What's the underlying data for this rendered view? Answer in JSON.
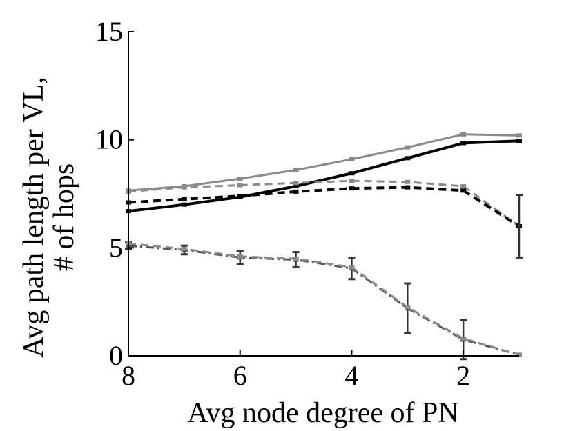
{
  "chart_data": {
    "type": "line",
    "title": "",
    "xlabel": "Avg node degree of PN",
    "ylabel_lines": [
      "Avg path length per VL,",
      "# of hops"
    ],
    "xlim": [
      8,
      1
    ],
    "ylim": [
      0,
      15
    ],
    "xticks": [
      8,
      6,
      4,
      2
    ],
    "yticks": [
      0,
      5,
      10,
      15
    ],
    "x_reversed": true,
    "grid": false,
    "legend": "none",
    "series": [
      {
        "color": "#8a8a8a",
        "style": "solid",
        "x": [
          8,
          7,
          6,
          5,
          4,
          3,
          2,
          1
        ],
        "y": [
          7.65,
          7.85,
          8.2,
          8.6,
          9.1,
          9.65,
          10.25,
          10.2
        ]
      },
      {
        "color": "#000000",
        "style": "solid",
        "x": [
          8,
          7,
          6,
          5,
          4,
          3,
          2,
          1
        ],
        "y": [
          6.7,
          7.0,
          7.35,
          7.85,
          8.45,
          9.15,
          9.85,
          9.95
        ]
      },
      {
        "color": "#8a8a8a",
        "style": "dashed",
        "x": [
          8,
          7,
          6,
          5,
          4,
          3,
          2,
          1
        ],
        "y": [
          7.6,
          7.8,
          7.9,
          8.0,
          8.1,
          8.05,
          7.85,
          6.0
        ]
      },
      {
        "color": "#000000",
        "style": "dashed",
        "x": [
          8,
          7,
          6,
          5,
          4,
          3,
          2,
          1
        ],
        "y": [
          7.1,
          7.25,
          7.4,
          7.6,
          7.75,
          7.8,
          7.65,
          6.0
        ]
      },
      {
        "color": "#555555",
        "style": "dashdot",
        "x": [
          8,
          7,
          6,
          5,
          4,
          3,
          2,
          1
        ],
        "y": [
          5.1,
          4.9,
          4.55,
          4.45,
          4.05,
          2.2,
          0.75,
          0.05
        ],
        "errors": [
          0.15,
          0.2,
          0.3,
          0.35,
          0.5,
          1.15,
          0.9,
          0.0
        ]
      },
      {
        "color": "#8a8a8a",
        "style": "dashed",
        "x": [
          8,
          7,
          6,
          5,
          4,
          3,
          2,
          1
        ],
        "y": [
          5.2,
          4.95,
          4.6,
          4.5,
          4.1,
          2.25,
          0.8,
          0.05
        ]
      }
    ],
    "errorbars": [
      {
        "x": 1,
        "y": 6.0,
        "err": 1.45,
        "color": "#333333"
      }
    ]
  }
}
